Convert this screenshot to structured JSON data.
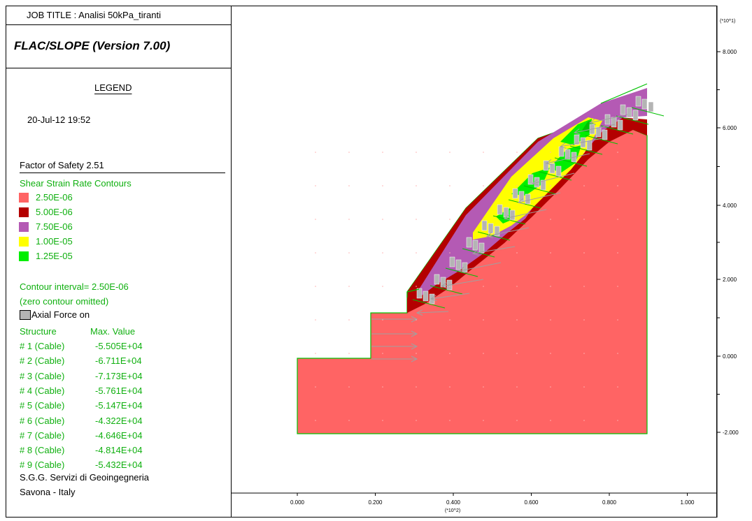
{
  "header": {
    "job_title": "JOB TITLE : Analisi 50kPa_tiranti",
    "software": "FLAC/SLOPE (Version 7.00)"
  },
  "legend": {
    "title": "LEGEND",
    "date": "20-Jul-12  19:52",
    "factor_of_safety": "Factor of Safety  2.51",
    "contours_title": "Shear Strain Rate Contours",
    "contours": [
      {
        "label": "2.50E-06",
        "color": "#ff6464"
      },
      {
        "label": "5.00E-06",
        "color": "#b40000"
      },
      {
        "label": "7.50E-06",
        "color": "#b45ab4"
      },
      {
        "label": "1.00E-05",
        "color": "#ffff00"
      },
      {
        "label": "1.25E-05",
        "color": "#00ee00"
      }
    ],
    "contour_interval": "Contour interval=  2.50E-06",
    "zero_omitted": "(zero contour omitted)",
    "axial_force": "Axial Force on",
    "structure_header": "Structure",
    "max_value_header": "Max. Value",
    "cables": [
      {
        "id": "# 1 (Cable)",
        "value": "-5.505E+04"
      },
      {
        "id": "# 2 (Cable)",
        "value": "-6.711E+04"
      },
      {
        "id": "# 3 (Cable)",
        "value": "-7.173E+04"
      },
      {
        "id": "# 4 (Cable)",
        "value": "-5.761E+04"
      },
      {
        "id": "# 5 (Cable)",
        "value": "-5.147E+04"
      },
      {
        "id": "# 6 (Cable)",
        "value": "-4.322E+04"
      },
      {
        "id": "# 7 (Cable)",
        "value": "-4.646E+04"
      },
      {
        "id": "# 8 (Cable)",
        "value": "-4.814E+04"
      },
      {
        "id": "# 9 (Cable)",
        "value": "-5.432E+04"
      }
    ],
    "company_line1": "S.G.G.  Servizi di Geoingegneria",
    "company_line2": "Savona - Italy"
  },
  "axes": {
    "x_ticks": [
      "0.000",
      "0.200",
      "0.400",
      "0.600",
      "0.800",
      "1.000"
    ],
    "x_multiplier": "(*10^2)",
    "y_ticks": [
      "8.000",
      "6.000",
      "4.000",
      "2.000",
      "0.000",
      "-2.000"
    ],
    "y_multiplier": "(*10^1)"
  },
  "colors": {
    "base": "#ff6464",
    "dark_red": "#b40000",
    "purple": "#b45ab4",
    "yellow": "#ffff00",
    "green": "#00ee00",
    "cable_gray": "#b4b4b4",
    "text_green": "#10b010"
  }
}
